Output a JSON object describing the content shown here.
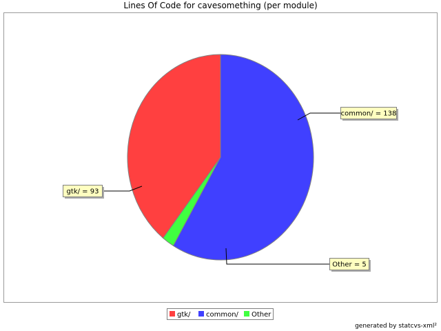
{
  "chart_data": {
    "type": "pie",
    "title": "Lines Of Code for cavesomething (per module)",
    "slices": [
      {
        "name": "gtk/",
        "value": 93,
        "label": "gtk/ = 93",
        "color": "#ff4040"
      },
      {
        "name": "common/",
        "value": 138,
        "label": "common/ = 138",
        "color": "#4040ff"
      },
      {
        "name": "Other",
        "value": 5,
        "label": "Other = 5",
        "color": "#40ff40"
      }
    ],
    "legend": {
      "placement": "bottom",
      "entries": [
        "gtk/",
        "common/",
        "Other"
      ]
    }
  },
  "footer": {
    "generated_by": "generated by statcvs-xml²"
  }
}
